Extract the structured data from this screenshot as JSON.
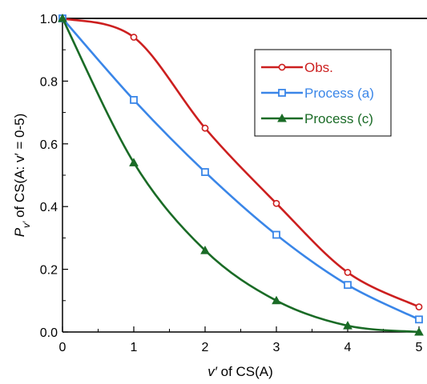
{
  "chart_data": {
    "type": "line",
    "x": [
      0,
      1,
      2,
      3,
      4,
      5
    ],
    "xlim": [
      0,
      5
    ],
    "ylim": [
      0,
      1
    ],
    "xticks": [
      0,
      1,
      2,
      3,
      4,
      5
    ],
    "yticks": [
      0.0,
      0.2,
      0.4,
      0.6,
      0.8,
      1.0
    ],
    "xtick_labels": [
      "0",
      "1",
      "2",
      "3",
      "4",
      "5"
    ],
    "ytick_labels": [
      "0.0",
      "0.2",
      "0.4",
      "0.6",
      "0.8",
      "1.0"
    ],
    "xlabel": {
      "main": "v′",
      "rest": "  of CS(A)"
    },
    "ylabel": {
      "main": "P",
      "sub": "v′",
      "rest": " of CS(A: v′ = 0-5)"
    },
    "legend_position": "top-right",
    "grid": false,
    "series": [
      {
        "name": "Obs.",
        "color": "#cc1f1f",
        "marker": "circle",
        "values": [
          1.0,
          0.94,
          0.65,
          0.41,
          0.19,
          0.08
        ]
      },
      {
        "name": "Process (a)",
        "color": "#3a86e8",
        "marker": "square",
        "values": [
          1.0,
          0.74,
          0.51,
          0.31,
          0.15,
          0.04
        ]
      },
      {
        "name": "Process (c)",
        "color": "#1a6b26",
        "marker": "triangle",
        "values": [
          1.0,
          0.54,
          0.26,
          0.1,
          0.02,
          0.0
        ]
      }
    ]
  }
}
